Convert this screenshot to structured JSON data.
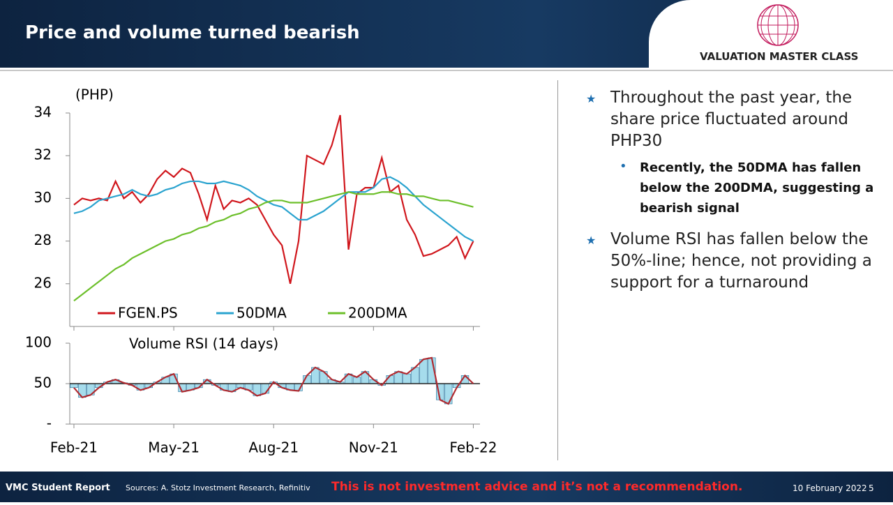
{
  "header": {
    "title": "Price and volume turned bearish",
    "logo": "VALUATION MASTER CLASS"
  },
  "bullets": [
    {
      "text": "Throughout the past year, the share price fluctuated around PHP30",
      "sub": "Recently, the 50DMA has fallen below the 200DMA, suggesting a bearish signal"
    },
    {
      "text": "Volume RSI has fallen below the 50%-line; hence, not providing a support for a turnaround"
    }
  ],
  "footer": {
    "report": "VMC Student Report",
    "sources": "Sources: A. Stotz Investment Research, Refinitiv",
    "disclaimer": "This is not investment advice and it’s not a recommendation.",
    "date": "10 February 2022",
    "page": "5"
  },
  "chart_data": [
    {
      "type": "line",
      "y_label": "(PHP)",
      "legend": "lower center",
      "x": [
        0,
        0.25,
        0.5,
        0.75,
        1,
        1.25,
        1.5,
        1.75,
        2,
        2.25,
        2.5,
        2.75,
        3,
        3.25,
        3.5,
        3.75,
        4,
        4.25,
        4.5,
        4.75,
        5,
        5.25,
        5.5,
        5.75,
        6,
        6.25,
        6.5,
        6.75,
        7,
        7.25,
        7.5,
        7.75,
        8,
        8.25,
        8.5,
        8.75,
        9,
        9.25,
        9.5,
        9.75,
        10,
        10.25,
        10.5,
        10.75,
        11,
        11.25,
        11.5,
        11.75,
        12
      ],
      "series": [
        {
          "name": "FGEN.PS",
          "color": "#d0161c",
          "values": [
            29.7,
            30.0,
            29.9,
            30.0,
            29.9,
            30.8,
            30.0,
            30.3,
            29.8,
            30.2,
            30.9,
            31.3,
            31.0,
            31.4,
            31.2,
            30.2,
            29.0,
            30.6,
            29.5,
            29.9,
            29.8,
            30.0,
            29.7,
            29.0,
            28.3,
            27.8,
            26.0,
            28.0,
            32.0,
            31.8,
            31.6,
            32.5,
            33.9,
            27.6,
            30.2,
            30.5,
            30.5,
            31.9,
            30.3,
            30.6,
            29.0,
            28.3,
            27.3,
            27.4,
            27.6,
            27.8,
            28.2,
            27.2,
            28.0
          ]
        },
        {
          "name": "50DMA",
          "color": "#2aa3cf",
          "values": [
            29.3,
            29.4,
            29.6,
            29.9,
            30.0,
            30.1,
            30.2,
            30.4,
            30.2,
            30.1,
            30.2,
            30.4,
            30.5,
            30.7,
            30.8,
            30.8,
            30.7,
            30.7,
            30.8,
            30.7,
            30.6,
            30.4,
            30.1,
            29.9,
            29.7,
            29.6,
            29.3,
            29.0,
            29.0,
            29.2,
            29.4,
            29.7,
            30.0,
            30.3,
            30.3,
            30.3,
            30.5,
            30.9,
            31.0,
            30.8,
            30.5,
            30.1,
            29.7,
            29.4,
            29.1,
            28.8,
            28.5,
            28.2,
            28.0
          ]
        },
        {
          "name": "200DMA",
          "color": "#6cbf2a",
          "values": [
            25.2,
            25.5,
            25.8,
            26.1,
            26.4,
            26.7,
            26.9,
            27.2,
            27.4,
            27.6,
            27.8,
            28.0,
            28.1,
            28.3,
            28.4,
            28.6,
            28.7,
            28.9,
            29.0,
            29.2,
            29.3,
            29.5,
            29.6,
            29.8,
            29.9,
            29.9,
            29.8,
            29.8,
            29.8,
            29.9,
            30.0,
            30.1,
            30.2,
            30.3,
            30.2,
            30.2,
            30.2,
            30.3,
            30.3,
            30.2,
            30.2,
            30.1,
            30.1,
            30.0,
            29.9,
            29.9,
            29.8,
            29.7,
            29.6
          ]
        }
      ],
      "xlim": [
        -0.125,
        12.2
      ],
      "ylim": [
        24,
        34
      ],
      "yticks": [
        26,
        28,
        30,
        32,
        34
      ]
    },
    {
      "type": "bar",
      "title": "Volume RSI (14 days)",
      "baseline": 50,
      "color": "#a6dcec",
      "edge_color": "#1e6b96",
      "line_color": "#b02a30",
      "x": [
        0,
        0.25,
        0.5,
        0.75,
        1,
        1.25,
        1.5,
        1.75,
        2,
        2.25,
        2.5,
        2.75,
        3,
        3.25,
        3.5,
        3.75,
        4,
        4.25,
        4.5,
        4.75,
        5,
        5.25,
        5.5,
        5.75,
        6,
        6.25,
        6.5,
        6.75,
        7,
        7.25,
        7.5,
        7.75,
        8,
        8.25,
        8.5,
        8.75,
        9,
        9.25,
        9.5,
        9.75,
        10,
        10.25,
        10.5,
        10.75,
        11,
        11.25,
        11.5,
        11.75,
        12
      ],
      "values": [
        45,
        33,
        36,
        45,
        52,
        55,
        51,
        48,
        42,
        45,
        52,
        58,
        62,
        40,
        42,
        45,
        55,
        48,
        42,
        40,
        45,
        42,
        35,
        38,
        52,
        45,
        42,
        41,
        60,
        70,
        65,
        55,
        52,
        62,
        58,
        65,
        55,
        48,
        60,
        65,
        62,
        70,
        80,
        82,
        30,
        25,
        45,
        60,
        50
      ],
      "xlim": [
        -0.125,
        12.2
      ],
      "ylim": [
        0,
        100
      ],
      "yticks": [
        {
          "value": 0,
          "label": "-"
        },
        50,
        100
      ],
      "xticks": [
        {
          "value": 0,
          "label": "Feb-21"
        },
        {
          "value": 3,
          "label": "May-21"
        },
        {
          "value": 6,
          "label": "Aug-21"
        },
        {
          "value": 9,
          "label": "Nov-21"
        },
        {
          "value": 12,
          "label": "Feb-22"
        }
      ]
    }
  ]
}
